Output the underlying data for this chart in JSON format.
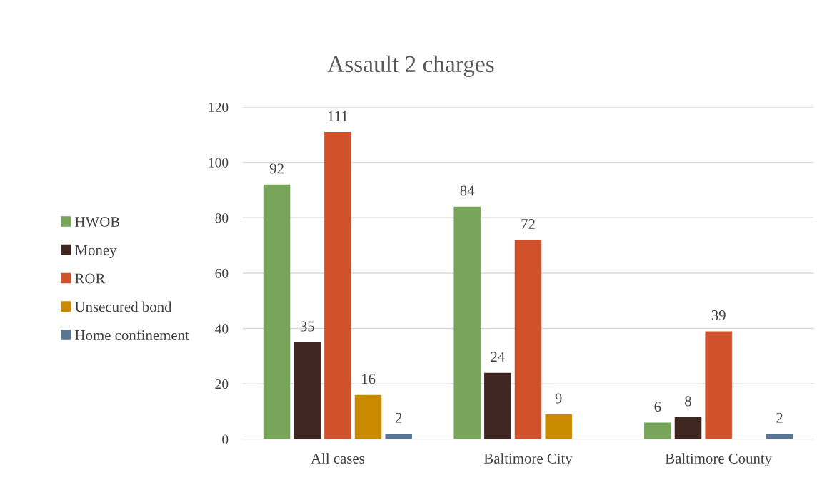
{
  "chart_data": {
    "type": "bar",
    "title": "Assault 2 charges",
    "categories": [
      "All cases",
      "Baltimore City",
      "Baltimore County"
    ],
    "series": [
      {
        "name": "HWOB",
        "color": "#77a55a",
        "values": [
          92,
          84,
          6
        ]
      },
      {
        "name": "Money",
        "color": "#3f2620",
        "values": [
          35,
          24,
          8
        ]
      },
      {
        "name": "ROR",
        "color": "#d0522d",
        "values": [
          111,
          72,
          39
        ]
      },
      {
        "name": "Unsecured bond",
        "color": "#c98a00",
        "values": [
          16,
          9,
          null
        ]
      },
      {
        "name": "Home confinement",
        "color": "#5a7591",
        "values": [
          2,
          null,
          2
        ]
      }
    ],
    "ylim": [
      0,
      120
    ],
    "yticks": [
      0,
      20,
      40,
      60,
      80,
      100,
      120
    ],
    "grid": "y",
    "legend": "left",
    "data_labels": true
  }
}
